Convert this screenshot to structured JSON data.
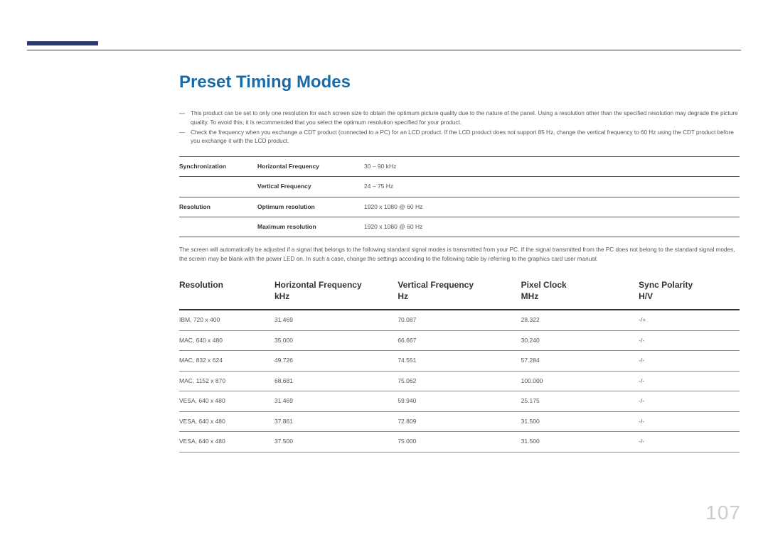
{
  "page": {
    "title": "Preset Timing Modes",
    "page_number": "107",
    "accent_color": "#2d3a6e",
    "title_color": "#1a6aa8"
  },
  "notes": [
    "This product can be set to only one resolution for each screen size to obtain the optimum picture quality due to the nature of the panel. Using a resolution other than the specified resolution may degrade the picture quality. To avoid this, it is recommended that you select the optimum resolution specified for your product.",
    "Check the frequency when you exchange a CDT product (connected to a PC) for an LCD product. If the LCD product does not support 85 Hz, change the vertical frequency to 60 Hz using the CDT product before you exchange it with the LCD product."
  ],
  "spec_table": {
    "rows": [
      {
        "cat": "Synchronization",
        "label": "Horizontal Frequency",
        "value": "30 – 90 kHz"
      },
      {
        "cat": "",
        "label": "Vertical Frequency",
        "value": "24 – 75 Hz"
      },
      {
        "cat": "Resolution",
        "label": "Optimum resolution",
        "value": "1920 x 1080 @ 60 Hz"
      },
      {
        "cat": "",
        "label": "Maximum resolution",
        "value": "1920 x 1080 @ 60 Hz"
      }
    ]
  },
  "mid_note": "The screen will automatically be adjusted if a signal that belongs to the following standard signal modes is transmitted from your PC. If the signal transmitted from the PC does not belong to the standard signal modes, the screen may be blank with the power LED on. In such a case, change the settings according to the following table by referring to the graphics card user manual.",
  "timing_table": {
    "headers": [
      {
        "line1": "Resolution",
        "line2": ""
      },
      {
        "line1": "Horizontal Frequency",
        "line2": "kHz"
      },
      {
        "line1": "Vertical Frequency",
        "line2": "Hz"
      },
      {
        "line1": "Pixel Clock",
        "line2": "MHz"
      },
      {
        "line1": "Sync Polarity",
        "line2": "H/V"
      }
    ],
    "rows": [
      [
        "IBM, 720 x 400",
        "31.469",
        "70.087",
        "28.322",
        "-/+"
      ],
      [
        "MAC, 640 x 480",
        "35.000",
        "66.667",
        "30.240",
        "-/-"
      ],
      [
        "MAC, 832 x 624",
        "49.726",
        "74.551",
        "57.284",
        "-/-"
      ],
      [
        "MAC, 1152 x 870",
        "68.681",
        "75.062",
        "100.000",
        "-/-"
      ],
      [
        "VESA, 640 x 480",
        "31.469",
        "59.940",
        "25.175",
        "-/-"
      ],
      [
        "VESA, 640 x 480",
        "37.861",
        "72.809",
        "31.500",
        "-/-"
      ],
      [
        "VESA, 640 x 480",
        "37.500",
        "75.000",
        "31.500",
        "-/-"
      ]
    ]
  }
}
